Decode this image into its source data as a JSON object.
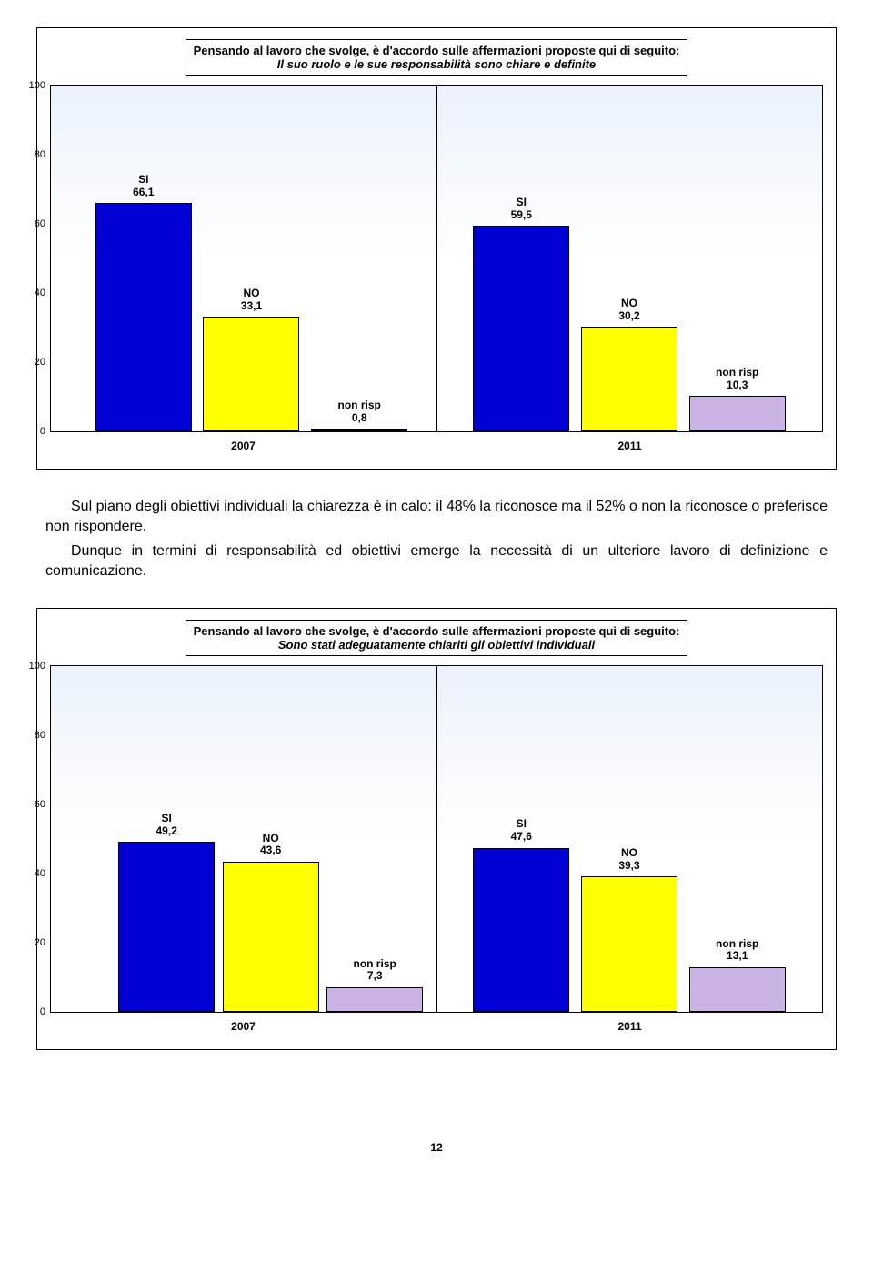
{
  "page_number": "12",
  "charts": [
    {
      "type": "bar",
      "title_line1": "Pensando al lavoro che svolge, è d'accordo sulle affermazioni proposte qui di seguito:",
      "title_line2": "Il suo ruolo e le sue responsabilità sono chiare e definite",
      "ylim_min": 0,
      "ylim_max": 100,
      "ytick_step": 20,
      "bar_width_pct": 12.5,
      "colors": {
        "SI": "#0000d4",
        "NO": "#ffff00",
        "non_risp": "#ccb3e6"
      },
      "label_fontsize": 12,
      "label_fontweight": "bold",
      "background_grad_top": "#eaf2fb",
      "background_grad_bottom": "#ffffff",
      "border_color": "#000000",
      "group_labels": [
        "2007",
        "2011"
      ],
      "groups": [
        {
          "bars": [
            {
              "name": "SI",
              "value": 66.1,
              "label_top": "SI",
              "label_val": "66,1",
              "color": "#0000d4",
              "center_pct": 12.0
            },
            {
              "name": "NO",
              "value": 33.1,
              "label_top": "NO",
              "label_val": "33,1",
              "color": "#ffff00",
              "center_pct": 26.0
            },
            {
              "name": "non risp",
              "value": 0.8,
              "label_top": "non risp",
              "label_val": "0,8",
              "color": "#ccb3e6",
              "center_pct": 40.0
            }
          ]
        },
        {
          "bars": [
            {
              "name": "SI",
              "value": 59.5,
              "label_top": "SI",
              "label_val": "59,5",
              "color": "#0000d4",
              "center_pct": 61.0
            },
            {
              "name": "NO",
              "value": 30.2,
              "label_top": "NO",
              "label_val": "30,2",
              "color": "#ffff00",
              "center_pct": 75.0
            },
            {
              "name": "non risp",
              "value": 10.3,
              "label_top": "non risp",
              "label_val": "10,3",
              "color": "#ccb3e6",
              "center_pct": 89.0
            }
          ]
        }
      ]
    },
    {
      "type": "bar",
      "title_line1": "Pensando al lavoro che svolge, è d'accordo sulle affermazioni proposte qui di seguito:",
      "title_line2": "Sono stati adeguatamente chiariti gli obiettivi individuali",
      "ylim_min": 0,
      "ylim_max": 100,
      "ytick_step": 20,
      "bar_width_pct": 12.5,
      "colors": {
        "SI": "#0000d4",
        "NO": "#ffff00",
        "non_risp": "#ccb3e6"
      },
      "label_fontsize": 12,
      "label_fontweight": "bold",
      "background_grad_top": "#eaf2fb",
      "background_grad_bottom": "#ffffff",
      "border_color": "#000000",
      "group_labels": [
        "2007",
        "2011"
      ],
      "groups": [
        {
          "bars": [
            {
              "name": "SI",
              "value": 49.2,
              "label_top": "SI",
              "label_val": "49,2",
              "color": "#0000d4",
              "center_pct": 15.0
            },
            {
              "name": "NO",
              "value": 43.6,
              "label_top": "NO",
              "label_val": "43,6",
              "color": "#ffff00",
              "center_pct": 28.5
            },
            {
              "name": "non risp",
              "value": 7.3,
              "label_top": "non risp",
              "label_val": "7,3",
              "color": "#ccb3e6",
              "center_pct": 42.0
            }
          ]
        },
        {
          "bars": [
            {
              "name": "SI",
              "value": 47.6,
              "label_top": "SI",
              "label_val": "47,6",
              "color": "#0000d4",
              "center_pct": 61.0
            },
            {
              "name": "NO",
              "value": 39.3,
              "label_top": "NO",
              "label_val": "39,3",
              "color": "#ffff00",
              "center_pct": 75.0
            },
            {
              "name": "non risp",
              "value": 13.1,
              "label_top": "non risp",
              "label_val": "13,1",
              "color": "#ccb3e6",
              "center_pct": 89.0
            }
          ]
        }
      ]
    }
  ],
  "paragraphs": [
    "Sul piano degli obiettivi individuali la chiarezza è in calo: il 48% la riconosce ma il 52% o non la riconosce o preferisce non rispondere.",
    "Dunque in termini di responsabilità ed obiettivi emerge la necessità di un ulteriore lavoro di definizione e comunicazione."
  ]
}
